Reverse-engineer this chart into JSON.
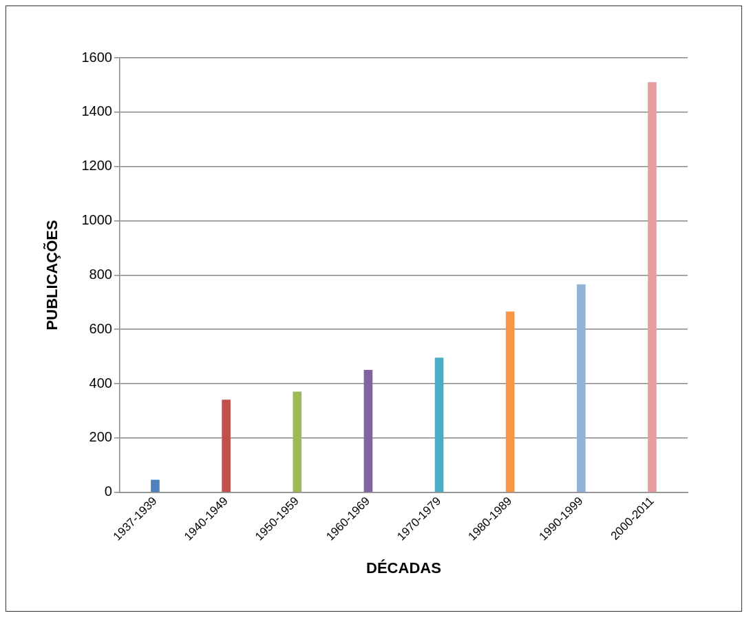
{
  "chart_data": {
    "type": "bar",
    "xlabel": "DÉCADAS",
    "ylabel": "PUBLICAÇÕES",
    "categories": [
      "1937-1939",
      "1940-1949",
      "1950-1959",
      "1960-1969",
      "1970-1979",
      "1980-1989",
      "1990-1999",
      "2000-2011"
    ],
    "values": [
      45,
      340,
      370,
      450,
      495,
      665,
      765,
      1510
    ],
    "colors": [
      "#4f81bd",
      "#c0504d",
      "#9bbb59",
      "#8064a2",
      "#4bacc6",
      "#f79646",
      "#95b3d7",
      "#e6a0a4"
    ],
    "ylim": [
      0,
      1600
    ],
    "yticks": [
      0,
      200,
      400,
      600,
      800,
      1000,
      1200,
      1400,
      1600
    ],
    "grid": "y",
    "legend": false
  }
}
